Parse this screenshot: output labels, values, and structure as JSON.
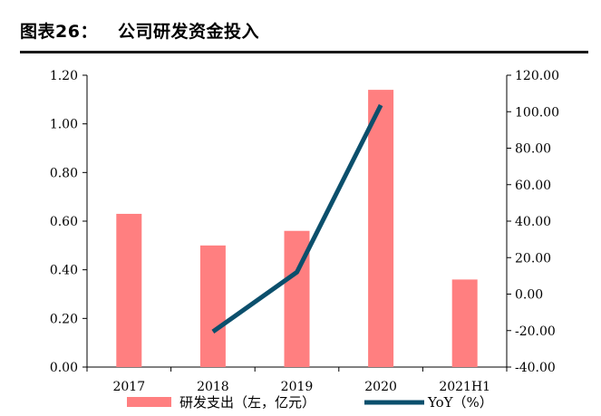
{
  "figure_label": "图表26：",
  "figure_title": "公司研发资金投入",
  "chart_data": {
    "type": "bar",
    "categories": [
      "2017",
      "2018",
      "2019",
      "2020",
      "2021H1"
    ],
    "series": [
      {
        "name": "研发支出（左，亿元）",
        "type": "bar",
        "axis": "left",
        "color": "#ff7f80",
        "values": [
          0.63,
          0.5,
          0.56,
          1.14,
          0.36
        ]
      },
      {
        "name": "YoY（%）",
        "type": "line",
        "axis": "right",
        "color": "#0b4f6c",
        "values": [
          null,
          -20.6,
          12.0,
          103.6,
          null
        ]
      }
    ],
    "y_left": {
      "range": [
        0,
        1.2
      ],
      "ticks": [
        "0.00",
        "0.20",
        "0.40",
        "0.60",
        "0.80",
        "1.00",
        "1.20"
      ]
    },
    "y_right": {
      "range": [
        -40,
        120
      ],
      "ticks": [
        "-40.00",
        "-20.00",
        "0.00",
        "20.00",
        "40.00",
        "60.00",
        "80.00",
        "100.00",
        "120.00"
      ]
    },
    "grid": false,
    "legend_position": "bottom"
  }
}
